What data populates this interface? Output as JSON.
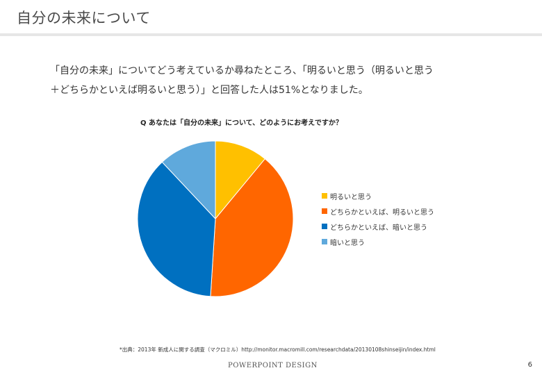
{
  "slide": {
    "title": "自分の未来について",
    "body_line1": "「自分の未来」についてどう考えているか尋ねたところ、「明るいと思う（明るいと思う",
    "body_line2": "＋どちらかといえば明るいと思う）」と回答した人は51%となりました。",
    "source": "*出典：2013年 新成人に関する調査（マクロミル）http://monitor.macromill.com/researchdata/20130108shinseijin/index.html",
    "brand": "POWERPOINT DESIGN",
    "page_number": "6"
  },
  "chart_data": {
    "type": "pie",
    "title": "Q あなたは「自分の未来」について、どのようにお考えですか？",
    "legend_position": "right",
    "slices": [
      {
        "label": "明るいと思う",
        "value": 11,
        "color": "#FFC000"
      },
      {
        "label": "どちらかといえば、明るいと思う",
        "value": 40,
        "color": "#FF6600"
      },
      {
        "label": "どちらかといえば、暗いと思う",
        "value": 37,
        "color": "#0070C0"
      },
      {
        "label": "暗いと思う",
        "value": 12,
        "color": "#5FA9DC"
      }
    ]
  }
}
